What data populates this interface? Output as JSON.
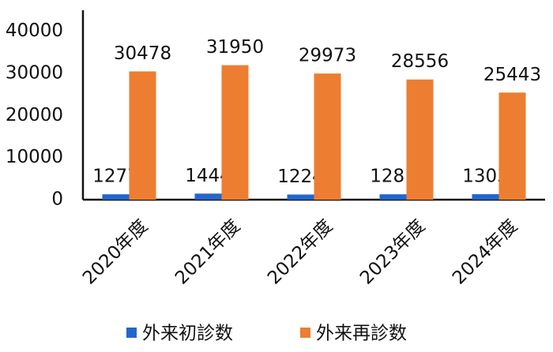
{
  "chart_data": {
    "type": "bar",
    "categories": [
      "2020年度",
      "2021年度",
      "2022年度",
      "2023年度",
      "2024年度"
    ],
    "series": [
      {
        "name": "外来初診数",
        "color": "#2266cc",
        "values": [
          1277,
          1444,
          1224,
          1281,
          1303
        ]
      },
      {
        "name": "外来再診数",
        "color": "#ed7d31",
        "values": [
          30478,
          31950,
          29973,
          28556,
          25443
        ]
      }
    ],
    "ylim": [
      0,
      45000
    ],
    "yticks": [
      0,
      10000,
      20000,
      30000,
      40000
    ],
    "grid": false,
    "legend": "bottom"
  }
}
